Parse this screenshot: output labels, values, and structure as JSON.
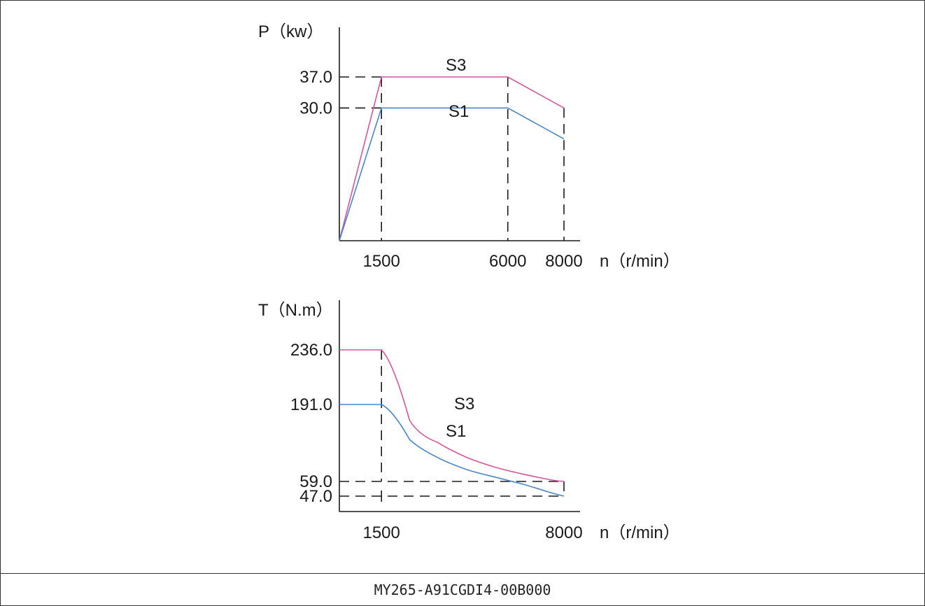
{
  "colors": {
    "S3": "#d6559e",
    "S1": "#4a86c8",
    "axis": "#1a1a1a",
    "guide": "#1a1a1a"
  },
  "chart_data": [
    {
      "type": "line",
      "title": "",
      "xlabel": "n（r/min）",
      "ylabel": "P（kw）",
      "xlim": [
        0,
        8000
      ],
      "ylim": [
        0,
        45
      ],
      "x_ticks": [
        1500,
        6000,
        8000
      ],
      "y_ticks": [
        37.0,
        30.0
      ],
      "x_tick_labels": [
        "1500",
        "6000",
        "8000"
      ],
      "y_tick_labels": [
        "37.0",
        "30.0"
      ],
      "grid": false,
      "series": [
        {
          "name": "S3",
          "x": [
            0,
            1500,
            6000,
            8000
          ],
          "y": [
            0,
            37.0,
            37.0,
            30.0
          ]
        },
        {
          "name": "S1",
          "x": [
            0,
            1500,
            6000,
            8000
          ],
          "y": [
            0,
            30.0,
            30.0,
            23.0
          ]
        }
      ]
    },
    {
      "type": "line",
      "title": "",
      "xlabel": "n（r/min）",
      "ylabel": "T（N.m）",
      "xlim": [
        0,
        8000
      ],
      "ylim": [
        35,
        290
      ],
      "x_ticks": [
        1500,
        8000
      ],
      "y_ticks": [
        236.0,
        191.0,
        59.0,
        47.0
      ],
      "x_tick_labels": [
        "1500",
        "8000"
      ],
      "y_tick_labels": [
        "236.0",
        "191.0",
        "59.0",
        "47.0"
      ],
      "grid": false,
      "series": [
        {
          "name": "S3",
          "x": [
            0,
            1500,
            2500,
            3500,
            4500,
            5500,
            6500,
            7500,
            8000
          ],
          "y": [
            236.0,
            236.0,
            164.0,
            126.0,
            101.0,
            84.0,
            72.0,
            62.0,
            59.0
          ]
        },
        {
          "name": "S1",
          "x": [
            0,
            1500,
            2500,
            3500,
            4500,
            5500,
            6500,
            7500,
            8000
          ],
          "y": [
            191.0,
            191.0,
            131.0,
            100.0,
            80.0,
            67.0,
            57.0,
            50.0,
            47.0
          ]
        }
      ]
    }
  ],
  "footer": {
    "model": "MY265-A91CGDI4-00B000"
  }
}
